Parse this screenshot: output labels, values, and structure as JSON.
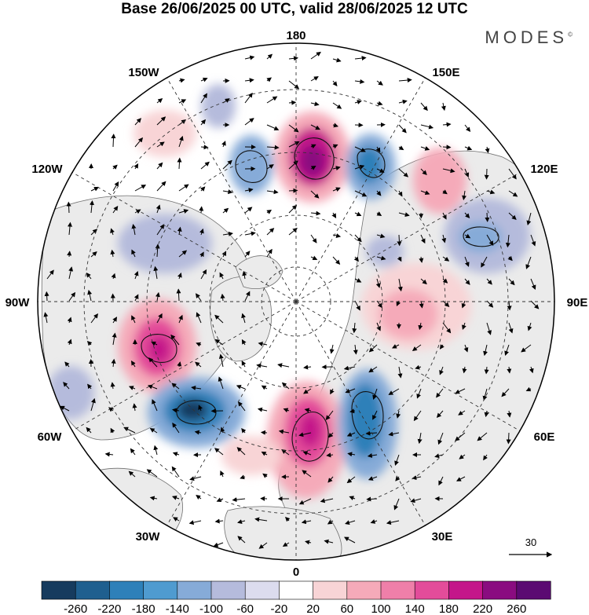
{
  "title": "Base 26/06/2025 00 UTC, valid 28/06/2025 12 UTC",
  "brand": "MODES",
  "brand_mark": "©",
  "longitude_labels": [
    "180",
    "150E",
    "120E",
    "90E",
    "60E",
    "30E",
    "0",
    "30W",
    "60W",
    "90W",
    "120W",
    "150W"
  ],
  "vector_reference": {
    "label": "30"
  },
  "colorbar": {
    "colors": [
      "#163b5e",
      "#1f5f8f",
      "#2e80b9",
      "#4f9bd0",
      "#86abd8",
      "#b5bbdc",
      "#dcdcee",
      "#ffffff",
      "#f8d4d6",
      "#f5aab9",
      "#ef7fa9",
      "#e34c9a",
      "#c4168a",
      "#8a0c80",
      "#5b0a72"
    ],
    "tick_labels": [
      "-260",
      "-220",
      "-180",
      "-140",
      "-100",
      "-60",
      "-20",
      "20",
      "60",
      "100",
      "140",
      "180",
      "220",
      "260"
    ]
  },
  "map_colors": {
    "land": "#ebebeb",
    "ocean": "#ffffff",
    "coast": "#707070",
    "grid": "#333333"
  }
}
